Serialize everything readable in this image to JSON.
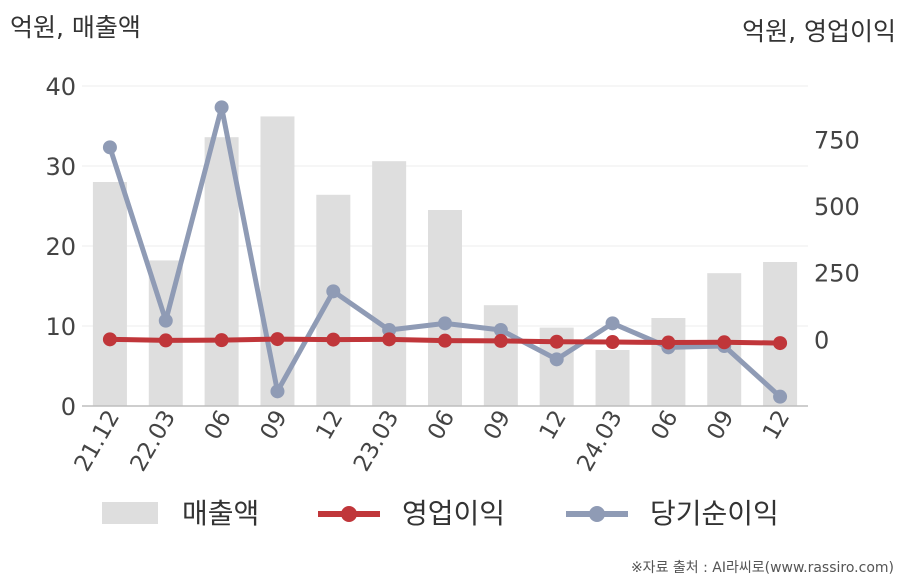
{
  "chart_data": {
    "type": "bar+line",
    "categories": [
      "21.12",
      "22.03",
      "06",
      "09",
      "12",
      "23.03",
      "06",
      "09",
      "12",
      "24.03",
      "06",
      "09",
      "12"
    ],
    "left_axis_label": "억원, 매출액",
    "right_axis_label": "억원, 영업이익",
    "left_ticks": [
      "0",
      "10",
      "20",
      "30",
      "40"
    ],
    "right_ticks": [
      "0",
      "250",
      "500",
      "750"
    ],
    "left_ylim": [
      0,
      40
    ],
    "right_ylim": [
      -250,
      950
    ],
    "grid": true,
    "legend_position": "bottom",
    "series": [
      {
        "name": "매출액",
        "kind": "bar",
        "axis": "left",
        "color": "#dedede",
        "values": [
          28,
          18.2,
          33.6,
          36.2,
          26.4,
          30.6,
          24.5,
          12.6,
          9.8,
          7.0,
          11.0,
          16.6,
          18.0
        ]
      },
      {
        "name": "영업이익",
        "kind": "line",
        "axis": "right",
        "color": "#c0363a",
        "values": [
          0,
          -4,
          -3,
          1,
          -1,
          0,
          -5,
          -6,
          -9,
          -10,
          -12,
          -11,
          -14
        ]
      },
      {
        "name": "당기순이익",
        "kind": "line",
        "axis": "right",
        "color": "#8f9bb5",
        "values": [
          720,
          70,
          870,
          -195,
          180,
          35,
          60,
          35,
          -75,
          60,
          -30,
          -25,
          -215
        ]
      }
    ]
  },
  "source_note": "※자료 출처 : AI라씨로(www.rassiro.com)"
}
